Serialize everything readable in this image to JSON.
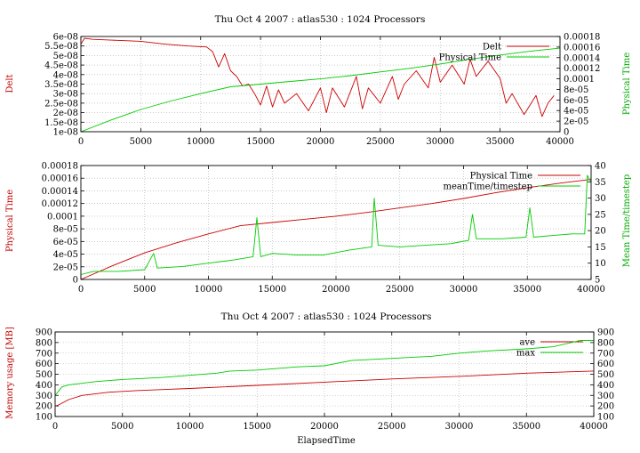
{
  "chart_data": [
    {
      "type": "line",
      "title": "Thu Oct 4 2007 : atlas530 : 1024 Processors",
      "xlabel": "",
      "ylabel": "Delt",
      "y2label": "Physical Time",
      "xlim": [
        0,
        40000
      ],
      "ylim": [
        1e-08,
        6e-08
      ],
      "y2lim": [
        0,
        0.00018
      ],
      "xticks": [
        "0",
        "5000",
        "10000",
        "15000",
        "20000",
        "25000",
        "30000",
        "35000",
        "40000"
      ],
      "yticks": [
        "1e-08",
        "1.5e-08",
        "2e-08",
        "2.5e-08",
        "3e-08",
        "3.5e-08",
        "4e-08",
        "4.5e-08",
        "5e-08",
        "5.5e-08",
        "6e-08"
      ],
      "y2ticks": [
        "0",
        "2e-05",
        "4e-05",
        "6e-05",
        "8e-05",
        "0.0001",
        "0.00012",
        "0.00014",
        "0.00016",
        "0.00018"
      ],
      "grid": true,
      "legend_position": "top-right",
      "series": [
        {
          "name": "Delt",
          "axis": "y",
          "color": "#cc0000",
          "x": [
            0,
            300,
            1000,
            3000,
            5000,
            7000,
            9000,
            10500,
            11000,
            11500,
            12000,
            12500,
            13000,
            13500,
            14000,
            14500,
            15000,
            15500,
            16000,
            16500,
            17000,
            18000,
            19000,
            20000,
            20500,
            21000,
            22000,
            23000,
            23500,
            24000,
            25000,
            26000,
            26500,
            27000,
            28000,
            29000,
            29500,
            30000,
            31000,
            32000,
            32500,
            33000,
            34000,
            35000,
            35500,
            36000,
            37000,
            38000,
            38500,
            39000,
            39500
          ],
          "y": [
            5.6e-08,
            5.9e-08,
            5.85e-08,
            5.8e-08,
            5.75e-08,
            5.6e-08,
            5.5e-08,
            5.45e-08,
            5.2e-08,
            4.4e-08,
            5.1e-08,
            4.2e-08,
            3.9e-08,
            3.4e-08,
            3.5e-08,
            3e-08,
            2.4e-08,
            3.4e-08,
            2.3e-08,
            3.2e-08,
            2.5e-08,
            3e-08,
            2.1e-08,
            3.3e-08,
            2e-08,
            3.3e-08,
            2.3e-08,
            3.9e-08,
            2.2e-08,
            3.3e-08,
            2.5e-08,
            3.9e-08,
            2.7e-08,
            3.5e-08,
            4.2e-08,
            3.3e-08,
            4.9e-08,
            3.6e-08,
            4.5e-08,
            3.5e-08,
            4.8e-08,
            3.9e-08,
            4.7e-08,
            3.8e-08,
            2.5e-08,
            3e-08,
            1.9e-08,
            2.9e-08,
            1.8e-08,
            2.5e-08,
            2.9e-08
          ]
        },
        {
          "name": "Physical Time",
          "axis": "y2",
          "color": "#00cc00",
          "x": [
            0,
            2500,
            5000,
            7500,
            10000,
            12500,
            15000,
            17500,
            20000,
            22500,
            25000,
            27500,
            30000,
            32500,
            35000,
            37500,
            40000
          ],
          "y": [
            0,
            2.2e-05,
            4.2e-05,
            5.8e-05,
            7.2e-05,
            8.5e-05,
            9e-05,
            9.5e-05,
            0.0001,
            0.000106,
            0.000113,
            0.00012,
            0.000128,
            0.000137,
            0.000145,
            0.000152,
            0.000158
          ]
        }
      ]
    },
    {
      "type": "line",
      "title": "",
      "xlabel": "",
      "ylabel": "Physical Time",
      "y2label": "Mean Time/timestep",
      "xlim": [
        0,
        40000
      ],
      "ylim": [
        0,
        0.00018
      ],
      "y2lim": [
        5,
        40
      ],
      "xticks": [
        "0",
        "5000",
        "10000",
        "15000",
        "20000",
        "25000",
        "30000",
        "35000",
        "40000"
      ],
      "yticks": [
        "0",
        "2e-05",
        "4e-05",
        "6e-05",
        "8e-05",
        "0.0001",
        "0.00012",
        "0.00014",
        "0.00016",
        "0.00018"
      ],
      "y2ticks": [
        "5",
        "10",
        "15",
        "20",
        "25",
        "30",
        "35",
        "40"
      ],
      "grid": true,
      "legend_position": "top-right",
      "series": [
        {
          "name": "Physical Time",
          "axis": "y",
          "color": "#cc0000",
          "x": [
            0,
            2500,
            5000,
            7500,
            10000,
            12500,
            15000,
            17500,
            20000,
            22500,
            25000,
            27500,
            30000,
            32500,
            35000,
            37500,
            40000
          ],
          "y": [
            0,
            2.2e-05,
            4.2e-05,
            5.8e-05,
            7.2e-05,
            8.5e-05,
            9e-05,
            9.5e-05,
            0.0001,
            0.000106,
            0.000113,
            0.00012,
            0.000128,
            0.000137,
            0.000145,
            0.000152,
            0.000158
          ]
        },
        {
          "name": "meanTime/timestep",
          "axis": "y2",
          "color": "#00cc00",
          "x": [
            0,
            1000,
            3000,
            5000,
            5700,
            6000,
            8000,
            10000,
            12000,
            13500,
            13800,
            14100,
            15000,
            17000,
            19000,
            21000,
            22800,
            23000,
            23300,
            25000,
            27000,
            29000,
            30400,
            30700,
            31000,
            33000,
            34900,
            35200,
            35500,
            37000,
            38500,
            39500,
            39700,
            40000
          ],
          "y": [
            6.5,
            7.5,
            7.5,
            8,
            13,
            8.5,
            9,
            10,
            11,
            12,
            24,
            12,
            13,
            12.5,
            12.5,
            14,
            15,
            30,
            15.5,
            15,
            15.5,
            16,
            17,
            25,
            17.5,
            17.5,
            18,
            27,
            18,
            18.5,
            19,
            19,
            37,
            35
          ]
        }
      ]
    },
    {
      "type": "line",
      "title": "Thu Oct 4 2007 : atlas530 : 1024 Processors",
      "xlabel": "ElapsedTime",
      "ylabel": "Memory usage [MB]",
      "xlim": [
        0,
        40000
      ],
      "ylim": [
        100,
        900
      ],
      "y2lim": [
        100,
        900
      ],
      "xticks": [
        "0",
        "5000",
        "10000",
        "15000",
        "20000",
        "25000",
        "30000",
        "35000",
        "40000"
      ],
      "yticks": [
        "100",
        "200",
        "300",
        "400",
        "500",
        "600",
        "700",
        "800",
        "900"
      ],
      "y2ticks": [
        "100",
        "200",
        "300",
        "400",
        "500",
        "600",
        "700",
        "800",
        "900"
      ],
      "grid": true,
      "legend_position": "top-right",
      "series": [
        {
          "name": "ave",
          "axis": "y",
          "color": "#cc0000",
          "x": [
            0,
            200,
            1000,
            2000,
            4000,
            6000,
            8000,
            10000,
            15000,
            20000,
            25000,
            30000,
            35000,
            40000
          ],
          "y": [
            200,
            205,
            260,
            300,
            330,
            345,
            355,
            365,
            395,
            425,
            455,
            480,
            510,
            530
          ]
        },
        {
          "name": "max",
          "axis": "y",
          "color": "#00cc00",
          "x": [
            0,
            500,
            1000,
            3000,
            5000,
            8000,
            10000,
            12000,
            13000,
            15000,
            18000,
            20000,
            22000,
            25000,
            28000,
            30000,
            32000,
            35000,
            37000,
            39000,
            40000
          ],
          "y": [
            300,
            380,
            400,
            430,
            450,
            470,
            490,
            510,
            530,
            540,
            570,
            580,
            630,
            650,
            670,
            700,
            720,
            740,
            760,
            820,
            820
          ]
        }
      ]
    }
  ]
}
